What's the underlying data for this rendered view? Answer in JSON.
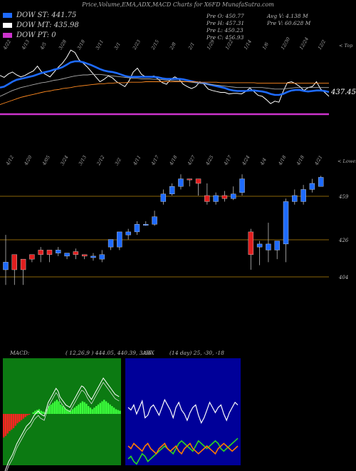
{
  "header": {
    "title": "Price,Volume,EMA,ADX,MACD Charts for X6FD MunafaSutra.com",
    "legend": [
      {
        "label": "DOW ST: 441.75",
        "color": "#1e6bff"
      },
      {
        "label": "DOW MT: 435.98",
        "color": "#ffffff"
      },
      {
        "label": "DOW PT: 0",
        "color": "#cc33cc"
      }
    ],
    "ohlc": {
      "open": "Pre  O: 450.77",
      "high": "Pre  H: 457.31",
      "low": "Pre  L: 450.23",
      "close": "Pre  C: 456.93",
      "avg": "Avg V: 4.138  M",
      "vol": "Pre  V: 60.628  M"
    }
  },
  "top_panel": {
    "corner_label": "< Top",
    "price_label": "437.45",
    "date_ticks": [
      "4/22",
      "4/13",
      "4/5",
      "3/28",
      "3/18",
      "3/11",
      "3/1",
      "2/23",
      "2/15",
      "2/8",
      "2/1",
      "1/29",
      "1/22",
      "1/14",
      "1/6",
      "12/30",
      "12/24",
      "12/2"
    ]
  },
  "candle_panel": {
    "corner_label": "< Lower",
    "date_ticks": [
      "4/12",
      "4/20",
      "4/05",
      "3/24",
      "3/13",
      "2/12",
      "3/2",
      "4/11",
      "4/17",
      "4/18",
      "4/27",
      "4/25",
      "4/17",
      "4/24",
      "4/4",
      "4/18",
      "4/18",
      "4/21"
    ]
  },
  "indicators": {
    "macd_label": "MACD:",
    "macd_values": "( 12,26,9 ) 444.05, 440.39, 3.66",
    "adx_label": "ADX",
    "adx_values": "(14 day) 25, -30, -18"
  },
  "chart_data": [
    {
      "type": "line",
      "name": "price-ema-panel",
      "series": [
        {
          "name": "Price",
          "color": "#ffffff",
          "values": [
            153,
            149,
            156,
            160,
            154,
            150,
            153,
            158,
            162,
            172,
            160,
            155,
            150,
            160,
            170,
            178,
            190,
            205,
            200,
            185,
            178,
            170,
            160,
            150,
            140,
            145,
            152,
            148,
            140,
            135,
            130,
            142,
            160,
            168,
            155,
            150,
            150,
            152,
            145,
            138,
            135,
            145,
            150,
            145,
            135,
            130,
            126,
            130,
            140,
            135,
            125,
            122,
            120,
            118,
            118,
            115,
            116,
            116,
            115,
            120,
            127,
            120,
            112,
            110,
            103,
            95,
            100,
            98,
            120,
            138,
            140,
            136,
            130,
            122,
            128,
            130,
            140,
            125,
            118,
            110
          ]
        },
        {
          "name": "EMA fast",
          "color": "#1e6bff",
          "values": [
            128,
            130,
            135,
            140,
            144,
            146,
            148,
            150,
            152,
            155,
            158,
            160,
            162,
            165,
            167,
            170,
            175,
            180,
            182,
            182,
            180,
            177,
            174,
            170,
            166,
            163,
            161,
            160,
            158,
            155,
            152,
            150,
            150,
            150,
            150,
            150,
            150,
            150,
            149,
            147,
            146,
            146,
            146,
            146,
            145,
            143,
            141,
            139,
            138,
            137,
            135,
            133,
            131,
            129,
            127,
            124,
            122,
            121,
            121,
            121,
            122,
            122,
            121,
            120,
            118,
            115,
            113,
            113,
            115,
            119,
            122,
            123,
            123,
            121,
            120,
            121,
            122,
            122,
            121,
            119
          ]
        },
        {
          "name": "EMA slow",
          "color": "#aaaaaa",
          "values": [
            110,
            114,
            118,
            122,
            125,
            128,
            130,
            132,
            134,
            136,
            138,
            139,
            141,
            143,
            144,
            146,
            148,
            150,
            152,
            153,
            154,
            154,
            155,
            155,
            155,
            154,
            153,
            152,
            151,
            150,
            149,
            148,
            147,
            147,
            146,
            146,
            146,
            145,
            145,
            144,
            143,
            143,
            142,
            142,
            141,
            140,
            139,
            138,
            137,
            136,
            135,
            134,
            133,
            132,
            131,
            130,
            129,
            128,
            128,
            128,
            128,
            128,
            128,
            128,
            127,
            126,
            125,
            125,
            125,
            126,
            127,
            128,
            128,
            128,
            128,
            128,
            128,
            128,
            128,
            128
          ]
        },
        {
          "name": "EMA long",
          "color": "#ff8a20",
          "values": [
            93,
            96,
            99,
            102,
            105,
            108,
            110,
            112,
            114,
            116,
            118,
            120,
            121,
            123,
            124,
            126,
            127,
            128,
            130,
            131,
            132,
            133,
            134,
            135,
            136,
            136,
            137,
            137,
            138,
            138,
            138,
            139,
            139,
            139,
            139,
            140,
            140,
            140,
            140,
            140,
            140,
            140,
            140,
            140,
            140,
            140,
            140,
            140,
            139,
            139,
            139,
            139,
            139,
            138,
            138,
            138,
            138,
            138,
            138,
            138,
            138,
            138,
            137,
            137,
            137,
            137,
            137,
            137,
            137,
            137,
            137,
            137,
            137,
            137,
            137,
            137,
            137,
            137,
            137,
            137
          ]
        }
      ],
      "hline": {
        "color": "#cc33cc",
        "price": 0
      }
    },
    {
      "type": "bar",
      "name": "candles",
      "y_ticks": [
        "459",
        "426",
        "404"
      ],
      "candles": [
        [
          400,
          395,
          418,
          385,
          "b"
        ],
        [
          395,
          405,
          402,
          385,
          "r"
        ],
        [
          395,
          402,
          395,
          385,
          "r"
        ],
        [
          402,
          405,
          405,
          400,
          "r"
        ],
        [
          405,
          408,
          410,
          400,
          "r"
        ],
        [
          408,
          405,
          405,
          400,
          "r"
        ],
        [
          406,
          408,
          410,
          404,
          "b"
        ],
        [
          404,
          406,
          406,
          402,
          "b"
        ],
        [
          407,
          405,
          409,
          402,
          "r"
        ],
        [
          405,
          404,
          404,
          402,
          "r"
        ],
        [
          403,
          404,
          406,
          401,
          "b"
        ],
        [
          402,
          405,
          408,
          400,
          "b"
        ],
        [
          410,
          415,
          415,
          408,
          "b"
        ],
        [
          410,
          420,
          420,
          408,
          "b"
        ],
        [
          418,
          420,
          422,
          415,
          "b"
        ],
        [
          420,
          425,
          427,
          418,
          "b"
        ],
        [
          425,
          425,
          427,
          424,
          "b"
        ],
        [
          425,
          430,
          434,
          424,
          "b"
        ],
        [
          440,
          445,
          448,
          438,
          "b"
        ],
        [
          445,
          450,
          452,
          444,
          "b"
        ],
        [
          450,
          455,
          458,
          448,
          "b"
        ],
        [
          455,
          455,
          455,
          450,
          "r"
        ],
        [
          455,
          452,
          455,
          444,
          "r"
        ],
        [
          444,
          440,
          452,
          438,
          "r"
        ],
        [
          440,
          444,
          446,
          438,
          "b"
        ],
        [
          444,
          442,
          447,
          440,
          "r"
        ],
        [
          442,
          445,
          450,
          441,
          "b"
        ],
        [
          446,
          455,
          458,
          444,
          "b"
        ],
        [
          420,
          405,
          422,
          395,
          "r"
        ],
        [
          410,
          412,
          414,
          398,
          "b"
        ],
        [
          408,
          412,
          426,
          400,
          "b"
        ],
        [
          408,
          414,
          414,
          402,
          "b"
        ],
        [
          412,
          440,
          442,
          400,
          "b"
        ],
        [
          440,
          444,
          448,
          438,
          "b"
        ],
        [
          440,
          448,
          451,
          438,
          "b"
        ],
        [
          448,
          452,
          455,
          446,
          "b"
        ],
        [
          450,
          456,
          457,
          450,
          "b"
        ]
      ]
    },
    {
      "type": "bar",
      "name": "macd",
      "values": [
        -30,
        -28,
        -25,
        -22,
        -20,
        -18,
        -15,
        -12,
        -10,
        -8,
        -6,
        -4,
        -2,
        -1,
        0,
        2,
        4,
        5,
        6,
        4,
        3,
        2,
        6,
        10,
        12,
        14,
        16,
        18,
        16,
        12,
        10,
        8,
        6,
        5,
        4,
        6,
        8,
        10,
        12,
        14,
        16,
        15,
        13,
        10,
        8,
        6,
        8,
        10,
        12,
        14,
        16,
        18,
        16,
        14,
        12,
        10,
        8,
        6,
        5,
        4
      ]
    },
    {
      "type": "line",
      "name": "adx",
      "series": [
        {
          "name": "Line1",
          "color": "#ffffff",
          "values": [
            30,
            32,
            28,
            35,
            30,
            25,
            38,
            36,
            30,
            28,
            32,
            36,
            30,
            24,
            28,
            32,
            38,
            30,
            26,
            32,
            35,
            40,
            34,
            30,
            28,
            36,
            42,
            38,
            32,
            26,
            30,
            34,
            30,
            28,
            35,
            40,
            34,
            30,
            26,
            28
          ]
        },
        {
          "name": "Line2",
          "color": "#2bd81f",
          "values": [
            70,
            68,
            72,
            74,
            70,
            66,
            68,
            72,
            70,
            68,
            66,
            64,
            62,
            60,
            62,
            64,
            66,
            62,
            58,
            56,
            58,
            60,
            62,
            64,
            60,
            56,
            58,
            60,
            62,
            60,
            58,
            56,
            58,
            62,
            64,
            62,
            60,
            58,
            56,
            54
          ]
        },
        {
          "name": "Line3",
          "color": "#ff7a00",
          "values": [
            60,
            62,
            58,
            60,
            62,
            64,
            60,
            58,
            62,
            64,
            66,
            62,
            60,
            58,
            62,
            64,
            62,
            60,
            64,
            66,
            62,
            60,
            58,
            62,
            64,
            66,
            64,
            62,
            60,
            62,
            64,
            66,
            62,
            60,
            58,
            60,
            62,
            64,
            62,
            60
          ]
        }
      ]
    }
  ]
}
